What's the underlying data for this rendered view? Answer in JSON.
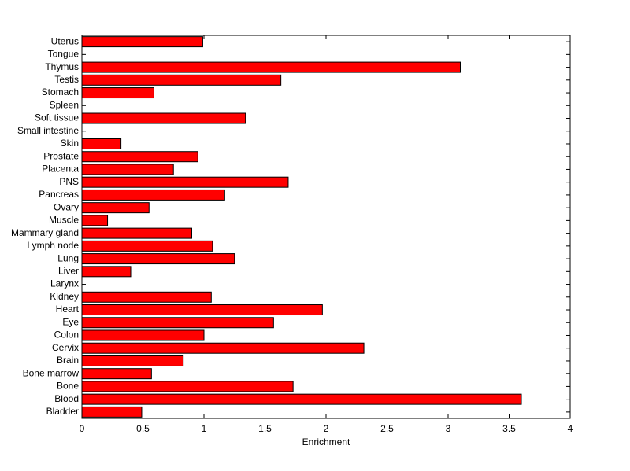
{
  "chart_data": {
    "type": "barh",
    "xlabel": "Enrichment",
    "categories": [
      "Bladder",
      "Blood",
      "Bone",
      "Bone marrow",
      "Brain",
      "Cervix",
      "Colon",
      "Eye",
      "Heart",
      "Kidney",
      "Larynx",
      "Liver",
      "Lung",
      "Lymph node",
      "Mammary gland",
      "Muscle",
      "Ovary",
      "Pancreas",
      "PNS",
      "Placenta",
      "Prostate",
      "Skin",
      "Small intestine",
      "Soft tissue",
      "Spleen",
      "Stomach",
      "Testis",
      "Thymus",
      "Tongue",
      "Uterus"
    ],
    "values": [
      0.49,
      3.6,
      1.73,
      0.57,
      0.83,
      2.31,
      1.0,
      1.57,
      1.97,
      1.06,
      0,
      0.4,
      1.25,
      1.07,
      0.9,
      0.21,
      0.55,
      1.17,
      1.69,
      0.75,
      0.95,
      0.32,
      0,
      1.34,
      0,
      0.59,
      1.63,
      3.1,
      0,
      0.99
    ],
    "color": "#ff0000",
    "xlim": [
      0,
      4
    ],
    "xticks": [
      0,
      0.5,
      1,
      1.5,
      2,
      2.5,
      3,
      3.5,
      4
    ]
  }
}
